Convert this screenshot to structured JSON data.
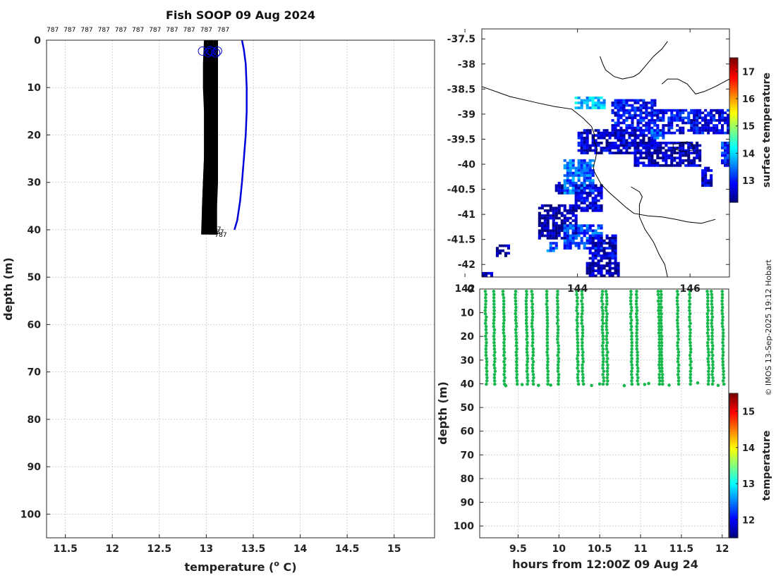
{
  "chart_data": [
    {
      "id": "profile",
      "type": "line",
      "title": "Fish SOOP 09 Aug 2024",
      "xlabel": "temperature (o C)",
      "xlabel_main": "temperature (",
      "xlabel_sup": "o",
      "xlabel_end": " C)",
      "ylabel": "depth (m)",
      "xlim": [
        11.3,
        15.43
      ],
      "ylim": [
        105,
        0
      ],
      "xticks": [
        "11.5",
        "12",
        "12.5",
        "13",
        "13.5",
        "14",
        "14.5",
        "15"
      ],
      "yticks": [
        "0",
        "10",
        "20",
        "30",
        "40",
        "50",
        "60",
        "70",
        "80",
        "90",
        "100"
      ],
      "top_labels": [
        "787",
        "787",
        "787",
        "787",
        "787",
        "787",
        "787",
        "787",
        "787",
        "787",
        "787"
      ],
      "bottom_labels": [
        "787",
        "787",
        "787"
      ],
      "climatology": {
        "color": "#0000dd",
        "points": [
          [
            13.38,
            0
          ],
          [
            13.4,
            2
          ],
          [
            13.42,
            5
          ],
          [
            13.43,
            10
          ],
          [
            13.43,
            15
          ],
          [
            13.42,
            20
          ],
          [
            13.4,
            25
          ],
          [
            13.38,
            30
          ],
          [
            13.36,
            34
          ],
          [
            13.33,
            38
          ],
          [
            13.3,
            40
          ]
        ]
      },
      "profiles_color": "#000000",
      "profiles": [
        [
          [
            12.99,
            0
          ],
          [
            12.98,
            5
          ],
          [
            12.98,
            10
          ],
          [
            12.99,
            15
          ],
          [
            12.99,
            20
          ],
          [
            12.99,
            25
          ],
          [
            12.98,
            30
          ],
          [
            12.97,
            35
          ],
          [
            12.96,
            41
          ]
        ],
        [
          [
            13.0,
            0
          ],
          [
            13.0,
            5
          ],
          [
            13.0,
            10
          ],
          [
            13.0,
            15
          ],
          [
            13.0,
            20
          ],
          [
            13.0,
            25
          ],
          [
            12.99,
            30
          ],
          [
            12.98,
            35
          ],
          [
            12.97,
            41
          ]
        ],
        [
          [
            13.02,
            1
          ],
          [
            13.02,
            5
          ],
          [
            13.02,
            10
          ],
          [
            13.02,
            15
          ],
          [
            13.02,
            20
          ],
          [
            13.02,
            25
          ],
          [
            13.01,
            30
          ],
          [
            13.0,
            35
          ],
          [
            12.99,
            41
          ]
        ],
        [
          [
            13.03,
            0
          ],
          [
            13.03,
            5
          ],
          [
            13.03,
            10
          ],
          [
            13.03,
            15
          ],
          [
            13.03,
            20
          ],
          [
            13.03,
            25
          ],
          [
            13.02,
            30
          ],
          [
            13.02,
            35
          ],
          [
            13.01,
            41
          ]
        ],
        [
          [
            13.05,
            1
          ],
          [
            13.05,
            5
          ],
          [
            13.05,
            10
          ],
          [
            13.05,
            15
          ],
          [
            13.05,
            20
          ],
          [
            13.05,
            25
          ],
          [
            13.04,
            30
          ],
          [
            13.04,
            35
          ],
          [
            13.03,
            41
          ]
        ],
        [
          [
            13.06,
            0
          ],
          [
            13.06,
            5
          ],
          [
            13.06,
            10
          ],
          [
            13.06,
            15
          ],
          [
            13.06,
            20
          ],
          [
            13.06,
            25
          ],
          [
            13.06,
            30
          ],
          [
            13.05,
            35
          ],
          [
            13.05,
            41
          ]
        ],
        [
          [
            13.07,
            1
          ],
          [
            13.08,
            5
          ],
          [
            13.08,
            10
          ],
          [
            13.08,
            15
          ],
          [
            13.08,
            20
          ],
          [
            13.07,
            25
          ],
          [
            13.07,
            30
          ],
          [
            13.07,
            35
          ],
          [
            13.06,
            41
          ]
        ],
        [
          [
            13.09,
            0
          ],
          [
            13.09,
            5
          ],
          [
            13.09,
            10
          ],
          [
            13.09,
            15
          ],
          [
            13.09,
            20
          ],
          [
            13.09,
            25
          ],
          [
            13.08,
            30
          ],
          [
            13.08,
            35
          ],
          [
            13.08,
            41
          ]
        ],
        [
          [
            13.1,
            1
          ],
          [
            13.1,
            5
          ],
          [
            13.1,
            10
          ],
          [
            13.1,
            15
          ],
          [
            13.1,
            20
          ],
          [
            13.1,
            25
          ],
          [
            13.1,
            30
          ],
          [
            13.09,
            35
          ],
          [
            13.09,
            41
          ]
        ],
        [
          [
            13.11,
            0
          ],
          [
            13.11,
            5
          ],
          [
            13.11,
            10
          ],
          [
            13.11,
            15
          ],
          [
            13.11,
            20
          ],
          [
            13.11,
            25
          ],
          [
            13.11,
            30
          ],
          [
            13.1,
            35
          ],
          [
            13.1,
            41
          ]
        ],
        [
          [
            13.04,
            0
          ],
          [
            13.04,
            5
          ],
          [
            13.03,
            10
          ],
          [
            13.02,
            15
          ],
          [
            13.0,
            20
          ],
          [
            12.99,
            25
          ],
          [
            12.98,
            30
          ],
          [
            12.97,
            35
          ],
          [
            12.97,
            40
          ]
        ]
      ],
      "start_markers": [
        [
          12.96,
          2.3
        ],
        [
          13.02,
          2.6
        ],
        [
          13.06,
          2.4
        ],
        [
          13.1,
          2.7
        ],
        [
          13.12,
          2.3
        ],
        [
          13.04,
          2.2
        ]
      ]
    },
    {
      "id": "map",
      "type": "heatmap",
      "lon_range": [
        142.3,
        146.7
      ],
      "lat_range": [
        -42.25,
        -37.3
      ],
      "yticks": [
        "-37.5",
        "-38",
        "-38.5",
        "-39",
        "-39.5",
        "-40",
        "-40.5",
        "-41",
        "-41.5",
        "-42"
      ],
      "ytick_values": [
        -37.5,
        -38,
        -38.5,
        -39,
        -39.5,
        -40,
        -40.5,
        -41,
        -41.5,
        -42
      ],
      "xticks": [
        "142",
        "144",
        "146"
      ],
      "xtick_values": [
        142,
        144,
        146
      ],
      "colorbar": {
        "label": "surface temperature",
        "range": [
          12.2,
          17.5
        ],
        "ticks": [
          "13",
          "14",
          "15",
          "16",
          "17"
        ],
        "tick_values": [
          13,
          14,
          15,
          16,
          17
        ]
      },
      "patches": [
        {
          "lon": 143.95,
          "lat": -38.65,
          "w": 0.55,
          "h": 0.25,
          "value": 13.9
        },
        {
          "lon": 144.6,
          "lat": -38.7,
          "w": 0.8,
          "h": 0.6,
          "value": 12.9
        },
        {
          "lon": 144.0,
          "lat": -39.3,
          "w": 1.4,
          "h": 0.5,
          "value": 12.6
        },
        {
          "lon": 145.4,
          "lat": -38.9,
          "w": 1.3,
          "h": 0.5,
          "value": 12.8
        },
        {
          "lon": 145.0,
          "lat": -39.55,
          "w": 1.2,
          "h": 0.5,
          "value": 12.5
        },
        {
          "lon": 143.75,
          "lat": -39.9,
          "w": 0.55,
          "h": 0.7,
          "value": 13.4
        },
        {
          "lon": 143.95,
          "lat": -40.4,
          "w": 0.5,
          "h": 0.55,
          "value": 12.7
        },
        {
          "lon": 143.3,
          "lat": -40.8,
          "w": 0.7,
          "h": 0.7,
          "value": 12.4
        },
        {
          "lon": 143.75,
          "lat": -41.2,
          "w": 0.7,
          "h": 0.5,
          "value": 13.2
        },
        {
          "lon": 144.2,
          "lat": -41.4,
          "w": 0.5,
          "h": 0.6,
          "value": 12.6
        },
        {
          "lon": 144.15,
          "lat": -41.95,
          "w": 0.6,
          "h": 0.35,
          "value": 12.4
        },
        {
          "lon": 142.55,
          "lat": -41.6,
          "w": 0.25,
          "h": 0.25,
          "value": 12.4
        },
        {
          "lon": 143.6,
          "lat": -40.35,
          "w": 0.15,
          "h": 0.25,
          "value": 12.4
        },
        {
          "lon": 145.3,
          "lat": -39.3,
          "w": 0.25,
          "h": 0.2,
          "value": 13.3
        },
        {
          "lon": 146.2,
          "lat": -40.05,
          "w": 0.2,
          "h": 0.4,
          "value": 12.6
        },
        {
          "lon": 146.55,
          "lat": -39.55,
          "w": 0.25,
          "h": 0.5,
          "value": 13.0
        },
        {
          "lon": 142.3,
          "lat": -42.15,
          "w": 0.2,
          "h": 0.2,
          "value": 12.4
        },
        {
          "lon": 143.45,
          "lat": -41.55,
          "w": 0.2,
          "h": 0.2,
          "value": 13.3
        }
      ],
      "coastline": [
        [
          [
            142.3,
            -38.45
          ],
          [
            142.8,
            -38.65
          ],
          [
            143.3,
            -38.78
          ],
          [
            143.6,
            -38.85
          ],
          [
            143.9,
            -38.9
          ],
          [
            144.1,
            -39.08
          ],
          [
            144.25,
            -39.25
          ],
          [
            144.3,
            -39.4
          ],
          [
            144.3,
            -39.55
          ],
          [
            144.35,
            -39.7
          ],
          [
            144.32,
            -39.9
          ],
          [
            144.28,
            -40.05
          ],
          [
            144.3,
            -40.15
          ],
          [
            144.42,
            -40.4
          ],
          [
            144.55,
            -40.55
          ],
          [
            144.7,
            -40.7
          ],
          [
            144.85,
            -40.85
          ],
          [
            145.0,
            -40.98
          ],
          [
            145.25,
            -41.03
          ],
          [
            145.5,
            -41.05
          ],
          [
            145.75,
            -41.1
          ],
          [
            145.95,
            -41.15
          ],
          [
            146.2,
            -41.18
          ],
          [
            146.45,
            -41.1
          ]
        ],
        [
          [
            144.4,
            -37.85
          ],
          [
            144.45,
            -38.0
          ],
          [
            144.5,
            -38.12
          ],
          [
            144.65,
            -38.25
          ],
          [
            144.8,
            -38.3
          ],
          [
            145.0,
            -38.25
          ],
          [
            145.1,
            -38.18
          ],
          [
            145.2,
            -38.05
          ],
          [
            145.35,
            -37.85
          ],
          [
            145.5,
            -37.7
          ],
          [
            145.6,
            -37.55
          ]
        ],
        [
          [
            145.5,
            -38.4
          ],
          [
            145.6,
            -38.3
          ],
          [
            145.78,
            -38.3
          ],
          [
            145.95,
            -38.4
          ],
          [
            146.1,
            -38.6
          ],
          [
            146.25,
            -38.55
          ],
          [
            146.45,
            -38.45
          ],
          [
            146.7,
            -38.3
          ]
        ],
        [
          [
            144.95,
            -40.45
          ],
          [
            145.1,
            -40.55
          ],
          [
            145.15,
            -40.65
          ],
          [
            145.1,
            -40.8
          ],
          [
            145.1,
            -41.05
          ],
          [
            145.2,
            -41.3
          ],
          [
            145.35,
            -41.55
          ],
          [
            145.45,
            -41.8
          ],
          [
            145.55,
            -42.0
          ],
          [
            145.6,
            -42.25
          ]
        ],
        [
          [
            145.7,
            -39.6
          ],
          [
            145.95,
            -39.55
          ],
          [
            146.05,
            -39.6
          ],
          [
            146.05,
            -39.72
          ],
          [
            145.85,
            -39.75
          ],
          [
            145.7,
            -39.68
          ],
          [
            145.7,
            -39.6
          ]
        ]
      ]
    },
    {
      "id": "timeseries",
      "type": "scatter",
      "xlabel": "hours from 12:00Z 09 Aug 24",
      "ylabel": "depth (m)",
      "xlim": [
        9.03,
        12.08
      ],
      "ylim": [
        105,
        0
      ],
      "xticks": [
        "9.5",
        "10",
        "10.5",
        "11",
        "11.5",
        "12"
      ],
      "xtick_values": [
        9.5,
        10,
        10.5,
        11,
        11.5,
        12
      ],
      "yticks": [
        "0",
        "10",
        "20",
        "30",
        "40",
        "50",
        "60",
        "70",
        "80",
        "90",
        "100"
      ],
      "ytick_values": [
        0,
        10,
        20,
        30,
        40,
        50,
        60,
        70,
        80,
        90,
        100
      ],
      "point_color": "#16b84c",
      "casts": [
        9.1,
        9.2,
        9.32,
        9.47,
        9.6,
        9.67,
        9.85,
        9.98,
        10.22,
        10.28,
        10.53,
        10.58,
        10.88,
        10.95,
        11.22,
        11.25,
        11.45,
        11.6,
        11.82,
        11.87,
        12.0
      ],
      "bottom_extra_x": [
        9.35,
        9.55,
        9.75,
        9.9,
        10.4,
        10.5,
        10.8,
        11.05,
        11.1,
        11.35,
        11.7,
        11.95
      ],
      "colorbar": {
        "label": "temperature",
        "range": [
          11.5,
          15.5
        ],
        "ticks": [
          "12",
          "13",
          "14",
          "15"
        ],
        "tick_values": [
          12,
          13,
          14,
          15
        ]
      },
      "overlap_ticks": [
        "142",
        "144",
        "146"
      ]
    }
  ],
  "credit": "© IMOS 13-Sep-2025 19:12 Hobart"
}
